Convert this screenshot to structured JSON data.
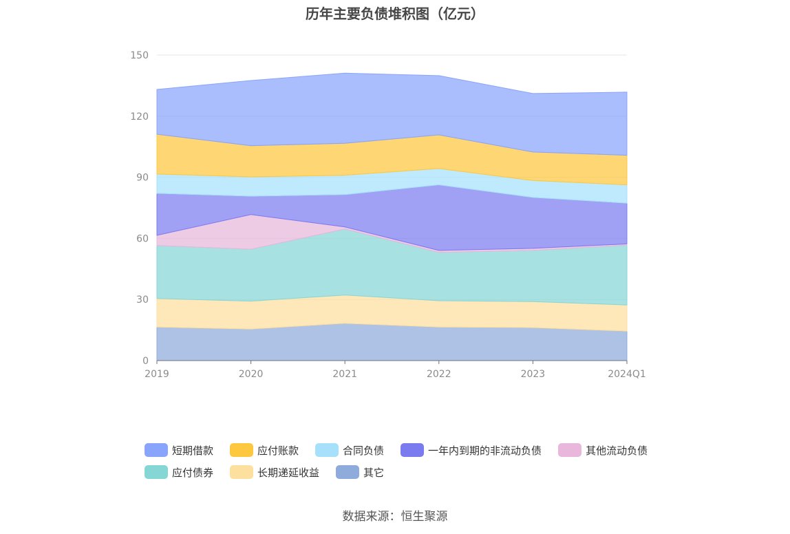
{
  "source_text": "数据来源：恒生聚源",
  "chart_data": {
    "type": "area",
    "stacked": true,
    "title": "历年主要负债堆积图（亿元）",
    "x": [
      "2019",
      "2020",
      "2021",
      "2022",
      "2023",
      "2024Q1"
    ],
    "ylim": [
      0,
      150
    ],
    "yticks": [
      "0",
      "30",
      "60",
      "90",
      "120",
      "150"
    ],
    "grid": true,
    "legend_position": "bottom",
    "series": [
      {
        "name": "其它",
        "color": "#8fabdb",
        "values": [
          16.5,
          15.5,
          18.3,
          16.5,
          16.2,
          14.5
        ]
      },
      {
        "name": "长期递延收益",
        "color": "#fddf9e",
        "values": [
          14.0,
          13.7,
          13.9,
          12.9,
          12.8,
          12.8
        ]
      },
      {
        "name": "应付债券",
        "color": "#87d6d6",
        "values": [
          26.0,
          25.5,
          32.4,
          23.7,
          25.1,
          29.4
        ]
      },
      {
        "name": "其他流动负债",
        "color": "#e8b7db",
        "values": [
          5.0,
          17.0,
          1.0,
          1.0,
          1.0,
          0.6
        ]
      },
      {
        "name": "一年内到期的非流动负债",
        "color": "#7b7bf0",
        "values": [
          20.6,
          9.0,
          15.9,
          32.2,
          25.0,
          20.0
        ]
      },
      {
        "name": "合同负债",
        "color": "#a6e0fb",
        "values": [
          9.5,
          9.5,
          9.5,
          8.0,
          8.3,
          9.0
        ]
      },
      {
        "name": "应付账款",
        "color": "#fdc83f",
        "values": [
          19.5,
          15.3,
          15.7,
          16.5,
          14.0,
          14.5
        ]
      },
      {
        "name": "短期借款",
        "color": "#89a4fb",
        "values": [
          22.0,
          32.0,
          34.4,
          29.1,
          28.7,
          31.0
        ]
      }
    ]
  },
  "legend": {
    "rows": [
      [
        {
          "name": "短期借款",
          "color": "#89a4fb"
        },
        {
          "name": "应付账款",
          "color": "#fdc83f"
        },
        {
          "name": "合同负债",
          "color": "#a6e0fb"
        },
        {
          "name": "一年内到期的非流动负债",
          "color": "#7b7bf0"
        },
        {
          "name": "其他流动负债",
          "color": "#e8b7db"
        }
      ],
      [
        {
          "name": "应付债券",
          "color": "#87d6d6"
        },
        {
          "name": "长期递延收益",
          "color": "#fddf9e"
        },
        {
          "name": "其它",
          "color": "#8fabdb"
        }
      ]
    ]
  }
}
